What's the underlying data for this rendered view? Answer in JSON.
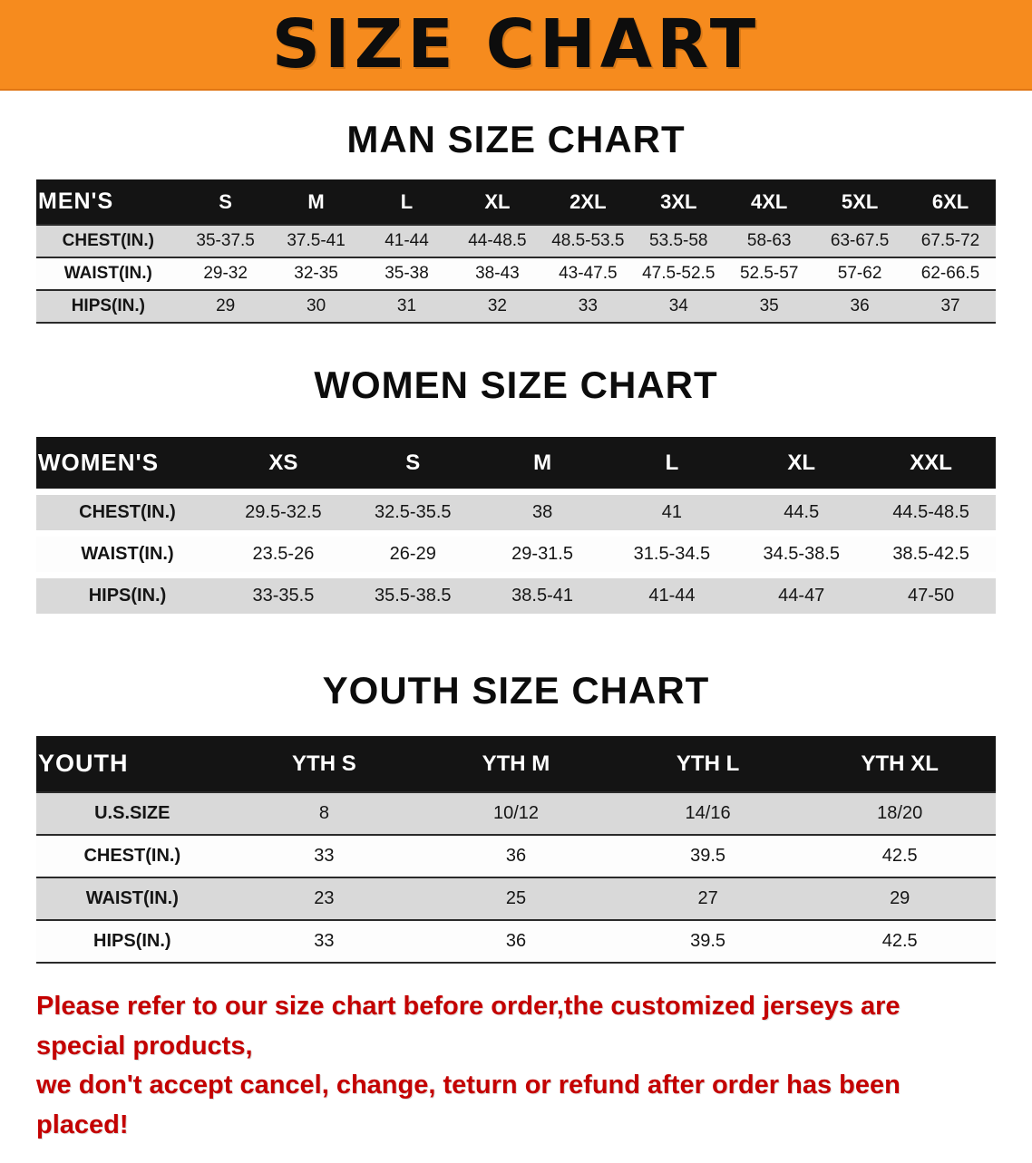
{
  "banner": {
    "title": "SIZE CHART",
    "bg_color": "#f68b1e",
    "text_color": "#0d0d0d"
  },
  "sections": [
    {
      "heading": "MAN SIZE CHART",
      "corner_label": "MEN'S",
      "columns": [
        "S",
        "M",
        "L",
        "XL",
        "2XL",
        "3XL",
        "4XL",
        "5XL",
        "6XL"
      ],
      "rows": [
        {
          "label": "CHEST(IN.)",
          "values": [
            "35-37.5",
            "37.5-41",
            "41-44",
            "44-48.5",
            "48.5-53.5",
            "53.5-58",
            "58-63",
            "63-67.5",
            "67.5-72"
          ]
        },
        {
          "label": "WAIST(IN.)",
          "values": [
            "29-32",
            "32-35",
            "35-38",
            "38-43",
            "43-47.5",
            "47.5-52.5",
            "52.5-57",
            "57-62",
            "62-66.5"
          ]
        },
        {
          "label": "HIPS(IN.)",
          "values": [
            "29",
            "30",
            "31",
            "32",
            "33",
            "34",
            "35",
            "36",
            "37"
          ]
        }
      ]
    },
    {
      "heading": "WOMEN SIZE CHART",
      "corner_label": "WOMEN'S",
      "columns": [
        "XS",
        "S",
        "M",
        "L",
        "XL",
        "XXL"
      ],
      "rows": [
        {
          "label": "CHEST(IN.)",
          "values": [
            "29.5-32.5",
            "32.5-35.5",
            "38",
            "41",
            "44.5",
            "44.5-48.5"
          ]
        },
        {
          "label": "WAIST(IN.)",
          "values": [
            "23.5-26",
            "26-29",
            "29-31.5",
            "31.5-34.5",
            "34.5-38.5",
            "38.5-42.5"
          ]
        },
        {
          "label": "HIPS(IN.)",
          "values": [
            "33-35.5",
            "35.5-38.5",
            "38.5-41",
            "41-44",
            "44-47",
            "47-50"
          ]
        }
      ]
    },
    {
      "heading": "YOUTH SIZE CHART",
      "corner_label": "YOUTH",
      "columns": [
        "YTH S",
        "YTH M",
        "YTH L",
        "YTH XL"
      ],
      "rows": [
        {
          "label": "U.S.SIZE",
          "values": [
            "8",
            "10/12",
            "14/16",
            "18/20"
          ]
        },
        {
          "label": "CHEST(IN.)",
          "values": [
            "33",
            "36",
            "39.5",
            "42.5"
          ]
        },
        {
          "label": "WAIST(IN.)",
          "values": [
            "23",
            "25",
            "27",
            "29"
          ]
        },
        {
          "label": "HIPS(IN.)",
          "values": [
            "33",
            "36",
            "39.5",
            "42.5"
          ]
        }
      ]
    }
  ],
  "disclaimer": {
    "line1": "Please refer to our size chart before order,the customized jerseys are special products,",
    "line2": "we don't accept cancel, change, teturn or refund after order has been placed!",
    "text_color": "#c40000"
  }
}
